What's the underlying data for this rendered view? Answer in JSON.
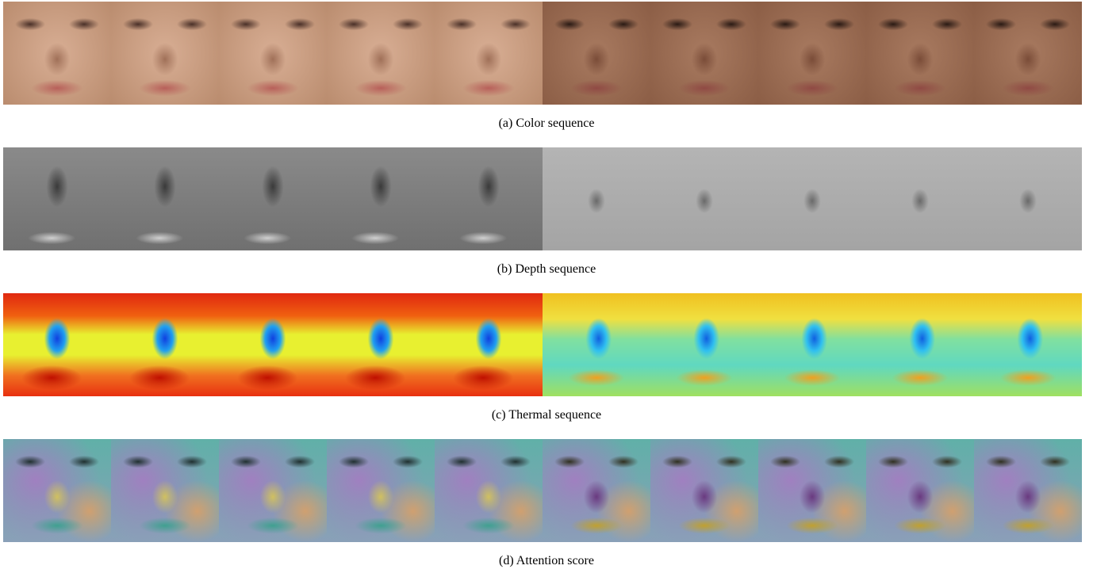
{
  "panels": [
    {
      "caption": "(a) Color sequence"
    },
    {
      "caption": "(b) Depth sequence"
    },
    {
      "caption": "(c) Thermal sequence"
    },
    {
      "caption": "(d) Attention score"
    }
  ]
}
